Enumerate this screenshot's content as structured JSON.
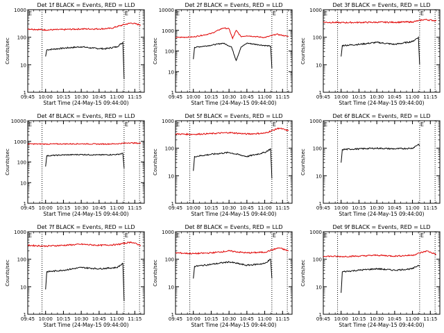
{
  "chart_data": [
    {
      "type": "line",
      "title": "Det 1f BLACK = Events, RED = LLD",
      "ylabel": "Counts/sec",
      "xlabel": "Start Time (24-May-15 09:44:00)",
      "yscale": "log",
      "ylim": [
        1,
        1000
      ],
      "xlim": [
        "09:45",
        "11:23"
      ],
      "xticks": [
        "09:45",
        "10:00",
        "10:15",
        "10:30",
        "10:45",
        "11:00",
        "11:15"
      ],
      "yticks": [
        "1",
        "10",
        "100",
        "1000"
      ],
      "markers": [
        {
          "time": "09:57",
          "label": ""
        },
        {
          "time": "11:06",
          "label": "E"
        },
        {
          "time": "11:19",
          "label": ""
        }
      ],
      "series": [
        {
          "color": "#000000",
          "points": [
            [
              "10:00",
              20
            ],
            [
              "10:01",
              35
            ],
            [
              "10:15",
              40
            ],
            [
              "10:30",
              45
            ],
            [
              "10:40",
              40
            ],
            [
              "10:50",
              38
            ],
            [
              "11:00",
              45
            ],
            [
              "11:05",
              65
            ],
            [
              "11:06",
              3
            ]
          ]
        },
        {
          "color": "#e00000",
          "points": [
            [
              "09:45",
              200
            ],
            [
              "10:00",
              185
            ],
            [
              "10:15",
              190
            ],
            [
              "10:30",
              200
            ],
            [
              "10:45",
              200
            ],
            [
              "10:55",
              210
            ],
            [
              "11:05",
              280
            ],
            [
              "11:12",
              330
            ],
            [
              "11:20",
              280
            ]
          ]
        }
      ]
    },
    {
      "type": "line",
      "title": "Det 2f BLACK = Events, RED = LLD",
      "ylabel": "Counts/sec",
      "xlabel": "Start Time (24-May-15 09:44:00)",
      "yscale": "log",
      "ylim": [
        1,
        10000
      ],
      "xlim": [
        "09:45",
        "11:23"
      ],
      "xticks": [
        "09:45",
        "10:00",
        "10:15",
        "10:30",
        "10:45",
        "11:00",
        "11:15"
      ],
      "yticks": [
        "1",
        "10",
        "100",
        "1000",
        "10000"
      ],
      "markers": [
        {
          "time": "09:57",
          "label": ""
        },
        {
          "time": "11:06",
          "label": "E"
        },
        {
          "time": "11:19",
          "label": ""
        }
      ],
      "series": [
        {
          "color": "#000000",
          "points": [
            [
              "10:00",
              40
            ],
            [
              "10:01",
              150
            ],
            [
              "10:15",
              190
            ],
            [
              "10:25",
              240
            ],
            [
              "10:32",
              160
            ],
            [
              "10:36",
              35
            ],
            [
              "10:40",
              150
            ],
            [
              "10:45",
              240
            ],
            [
              "10:55",
              200
            ],
            [
              "11:05",
              170
            ],
            [
              "11:06",
              15
            ]
          ]
        },
        {
          "color": "#e00000",
          "points": [
            [
              "09:45",
              450
            ],
            [
              "10:00",
              480
            ],
            [
              "10:15",
              700
            ],
            [
              "10:25",
              1300
            ],
            [
              "10:30",
              1200
            ],
            [
              "10:33",
              400
            ],
            [
              "10:36",
              1000
            ],
            [
              "10:40",
              500
            ],
            [
              "10:45",
              550
            ],
            [
              "11:00",
              450
            ],
            [
              "11:10",
              650
            ],
            [
              "11:20",
              500
            ]
          ]
        }
      ]
    },
    {
      "type": "line",
      "title": "Det 3f BLACK = Events, RED = LLD",
      "ylabel": "Counts/sec",
      "xlabel": "Start Time (24-May-15 09:44:00)",
      "yscale": "log",
      "ylim": [
        1,
        1000
      ],
      "xlim": [
        "09:45",
        "11:23"
      ],
      "xticks": [
        "09:45",
        "10:00",
        "10:15",
        "10:30",
        "10:45",
        "11:00",
        "11:15"
      ],
      "yticks": [
        "1",
        "10",
        "100",
        "1000"
      ],
      "markers": [
        {
          "time": "09:57",
          "label": ""
        },
        {
          "time": "11:06",
          "label": "E"
        },
        {
          "time": "11:19",
          "label": ""
        }
      ],
      "series": [
        {
          "color": "#000000",
          "points": [
            [
              "10:00",
              20
            ],
            [
              "10:01",
              50
            ],
            [
              "10:15",
              55
            ],
            [
              "10:30",
              65
            ],
            [
              "10:45",
              55
            ],
            [
              "11:00",
              70
            ],
            [
              "11:05",
              100
            ],
            [
              "11:06",
              10
            ]
          ]
        },
        {
          "color": "#e00000",
          "points": [
            [
              "09:45",
              350
            ],
            [
              "10:00",
              340
            ],
            [
              "10:15",
              345
            ],
            [
              "10:30",
              350
            ],
            [
              "10:45",
              350
            ],
            [
              "11:00",
              360
            ],
            [
              "11:10",
              440
            ],
            [
              "11:20",
              400
            ]
          ]
        }
      ]
    },
    {
      "type": "line",
      "title": "Det 4f BLACK = Events, RED = LLD",
      "ylabel": "Counts/sec",
      "xlabel": "Start Time (24-May-15 09:44:00)",
      "yscale": "log",
      "ylim": [
        1,
        10000
      ],
      "xlim": [
        "09:45",
        "11:23"
      ],
      "xticks": [
        "09:45",
        "10:00",
        "10:15",
        "10:30",
        "10:45",
        "11:00",
        "11:15"
      ],
      "yticks": [
        "1",
        "10",
        "100",
        "1000",
        "10000"
      ],
      "markers": [
        {
          "time": "09:57",
          "label": ""
        },
        {
          "time": "11:06",
          "label": "E"
        },
        {
          "time": "11:19",
          "label": ""
        }
      ],
      "series": [
        {
          "color": "#000000",
          "points": [
            [
              "10:00",
              60
            ],
            [
              "10:01",
              200
            ],
            [
              "10:15",
              220
            ],
            [
              "10:30",
              230
            ],
            [
              "10:45",
              220
            ],
            [
              "11:00",
              230
            ],
            [
              "11:05",
              260
            ],
            [
              "11:06",
              50
            ]
          ]
        },
        {
          "color": "#e00000",
          "points": [
            [
              "09:45",
              750
            ],
            [
              "10:00",
              740
            ],
            [
              "10:15",
              750
            ],
            [
              "10:30",
              760
            ],
            [
              "10:45",
              740
            ],
            [
              "11:00",
              760
            ],
            [
              "11:10",
              850
            ],
            [
              "11:20",
              800
            ]
          ]
        }
      ]
    },
    {
      "type": "line",
      "title": "Det 5f BLACK = Events, RED = LLD",
      "ylabel": "Counts/sec",
      "xlabel": "Start Time (24-May-15 09:44:00)",
      "yscale": "log",
      "ylim": [
        1,
        1000
      ],
      "xlim": [
        "09:45",
        "11:23"
      ],
      "xticks": [
        "09:45",
        "10:00",
        "10:15",
        "10:30",
        "10:45",
        "11:00",
        "11:15"
      ],
      "yticks": [
        "1",
        "10",
        "100",
        "1000"
      ],
      "markers": [
        {
          "time": "09:57",
          "label": ""
        },
        {
          "time": "11:06",
          "label": "E"
        },
        {
          "time": "11:19",
          "label": ""
        }
      ],
      "series": [
        {
          "color": "#000000",
          "points": [
            [
              "10:00",
              15
            ],
            [
              "10:01",
              50
            ],
            [
              "10:15",
              60
            ],
            [
              "10:30",
              70
            ],
            [
              "10:45",
              50
            ],
            [
              "11:00",
              70
            ],
            [
              "11:05",
              95
            ],
            [
              "11:06",
              8
            ]
          ]
        },
        {
          "color": "#e00000",
          "points": [
            [
              "09:45",
              330
            ],
            [
              "10:00",
              320
            ],
            [
              "10:15",
              340
            ],
            [
              "10:30",
              370
            ],
            [
              "10:45",
              330
            ],
            [
              "11:00",
              350
            ],
            [
              "11:12",
              540
            ],
            [
              "11:20",
              430
            ]
          ]
        }
      ]
    },
    {
      "type": "line",
      "title": "Det 6f BLACK = Events, RED = LLD",
      "ylabel": "Counts/sec",
      "xlabel": "Start Time (24-May-15 09:44:00)",
      "yscale": "log",
      "ylim": [
        1,
        1000
      ],
      "xlim": [
        "09:45",
        "11:23"
      ],
      "xticks": [
        "09:45",
        "10:00",
        "10:15",
        "10:30",
        "10:45",
        "11:00",
        "11:15"
      ],
      "yticks": [
        "1",
        "10",
        "100",
        "1000"
      ],
      "markers": [
        {
          "time": "09:57",
          "label": ""
        },
        {
          "time": "11:06",
          "label": "E"
        },
        {
          "time": "11:19",
          "label": ""
        }
      ],
      "series": [
        {
          "color": "#000000",
          "points": [
            [
              "10:00",
              30
            ],
            [
              "10:01",
              90
            ],
            [
              "10:15",
              95
            ],
            [
              "10:30",
              100
            ],
            [
              "10:45",
              95
            ],
            [
              "11:00",
              100
            ],
            [
              "11:05",
              140
            ],
            [
              "11:06",
              120
            ]
          ]
        }
      ]
    },
    {
      "type": "line",
      "title": "Det 7f BLACK = Events, RED = LLD",
      "ylabel": "Counts/sec",
      "xlabel": "Start Time (24-May-15 09:44:00)",
      "yscale": "log",
      "ylim": [
        1,
        1000
      ],
      "xlim": [
        "09:45",
        "11:23"
      ],
      "xticks": [
        "09:45",
        "10:00",
        "10:15",
        "10:30",
        "10:45",
        "11:00",
        "11:15"
      ],
      "yticks": [
        "1",
        "10",
        "100",
        "1000"
      ],
      "markers": [
        {
          "time": "09:57",
          "label": ""
        },
        {
          "time": "11:06",
          "label": "E"
        },
        {
          "time": "11:19",
          "label": ""
        }
      ],
      "series": [
        {
          "color": "#000000",
          "points": [
            [
              "10:00",
              8
            ],
            [
              "10:01",
              35
            ],
            [
              "10:15",
              40
            ],
            [
              "10:30",
              50
            ],
            [
              "10:45",
              45
            ],
            [
              "11:00",
              50
            ],
            [
              "11:05",
              70
            ],
            [
              "11:06",
              3
            ]
          ]
        },
        {
          "color": "#e00000",
          "points": [
            [
              "09:45",
              320
            ],
            [
              "10:00",
              300
            ],
            [
              "10:15",
              320
            ],
            [
              "10:30",
              350
            ],
            [
              "10:45",
              320
            ],
            [
              "11:00",
              340
            ],
            [
              "11:12",
              420
            ],
            [
              "11:20",
              320
            ]
          ]
        }
      ]
    },
    {
      "type": "line",
      "title": "Det 8f BLACK = Events, RED = LLD",
      "ylabel": "Counts/sec",
      "xlabel": "Start Time (24-May-15 09:44:00)",
      "yscale": "log",
      "ylim": [
        1,
        1000
      ],
      "xlim": [
        "09:45",
        "11:23"
      ],
      "xticks": [
        "09:45",
        "10:00",
        "10:15",
        "10:30",
        "10:45",
        "11:00",
        "11:15"
      ],
      "yticks": [
        "1",
        "10",
        "100",
        "1000"
      ],
      "markers": [
        {
          "time": "09:57",
          "label": ""
        },
        {
          "time": "11:06",
          "label": "E"
        },
        {
          "time": "11:19",
          "label": ""
        }
      ],
      "series": [
        {
          "color": "#000000",
          "points": [
            [
              "10:00",
              20
            ],
            [
              "10:01",
              55
            ],
            [
              "10:15",
              65
            ],
            [
              "10:30",
              80
            ],
            [
              "10:45",
              60
            ],
            [
              "11:00",
              70
            ],
            [
              "11:05",
              100
            ],
            [
              "11:06",
              20
            ]
          ]
        },
        {
          "color": "#e00000",
          "points": [
            [
              "09:45",
              170
            ],
            [
              "10:00",
              160
            ],
            [
              "10:15",
              170
            ],
            [
              "10:30",
              200
            ],
            [
              "10:45",
              170
            ],
            [
              "11:00",
              180
            ],
            [
              "11:12",
              260
            ],
            [
              "11:20",
              200
            ]
          ]
        }
      ]
    },
    {
      "type": "line",
      "title": "Det 9f BLACK = Events, RED = LLD",
      "ylabel": "Counts/sec",
      "xlabel": "Start Time (24-May-15 09:44:00)",
      "yscale": "log",
      "ylim": [
        1,
        1000
      ],
      "xlim": [
        "09:45",
        "11:23"
      ],
      "xticks": [
        "09:45",
        "10:00",
        "10:15",
        "10:30",
        "10:45",
        "11:00",
        "11:15"
      ],
      "yticks": [
        "1",
        "10",
        "100",
        "1000"
      ],
      "markers": [
        {
          "time": "09:57",
          "label": ""
        },
        {
          "time": "11:06",
          "label": "E"
        },
        {
          "time": "11:19",
          "label": ""
        }
      ],
      "series": [
        {
          "color": "#000000",
          "points": [
            [
              "10:00",
              6
            ],
            [
              "10:01",
              35
            ],
            [
              "10:15",
              40
            ],
            [
              "10:30",
              45
            ],
            [
              "10:45",
              40
            ],
            [
              "11:00",
              45
            ],
            [
              "11:05",
              60
            ],
            [
              "11:06",
              55
            ]
          ]
        },
        {
          "color": "#e00000",
          "points": [
            [
              "09:45",
              130
            ],
            [
              "10:00",
              125
            ],
            [
              "10:15",
              130
            ],
            [
              "10:30",
              140
            ],
            [
              "10:45",
              130
            ],
            [
              "11:00",
              140
            ],
            [
              "11:12",
              200
            ],
            [
              "11:20",
              150
            ]
          ]
        }
      ]
    }
  ]
}
